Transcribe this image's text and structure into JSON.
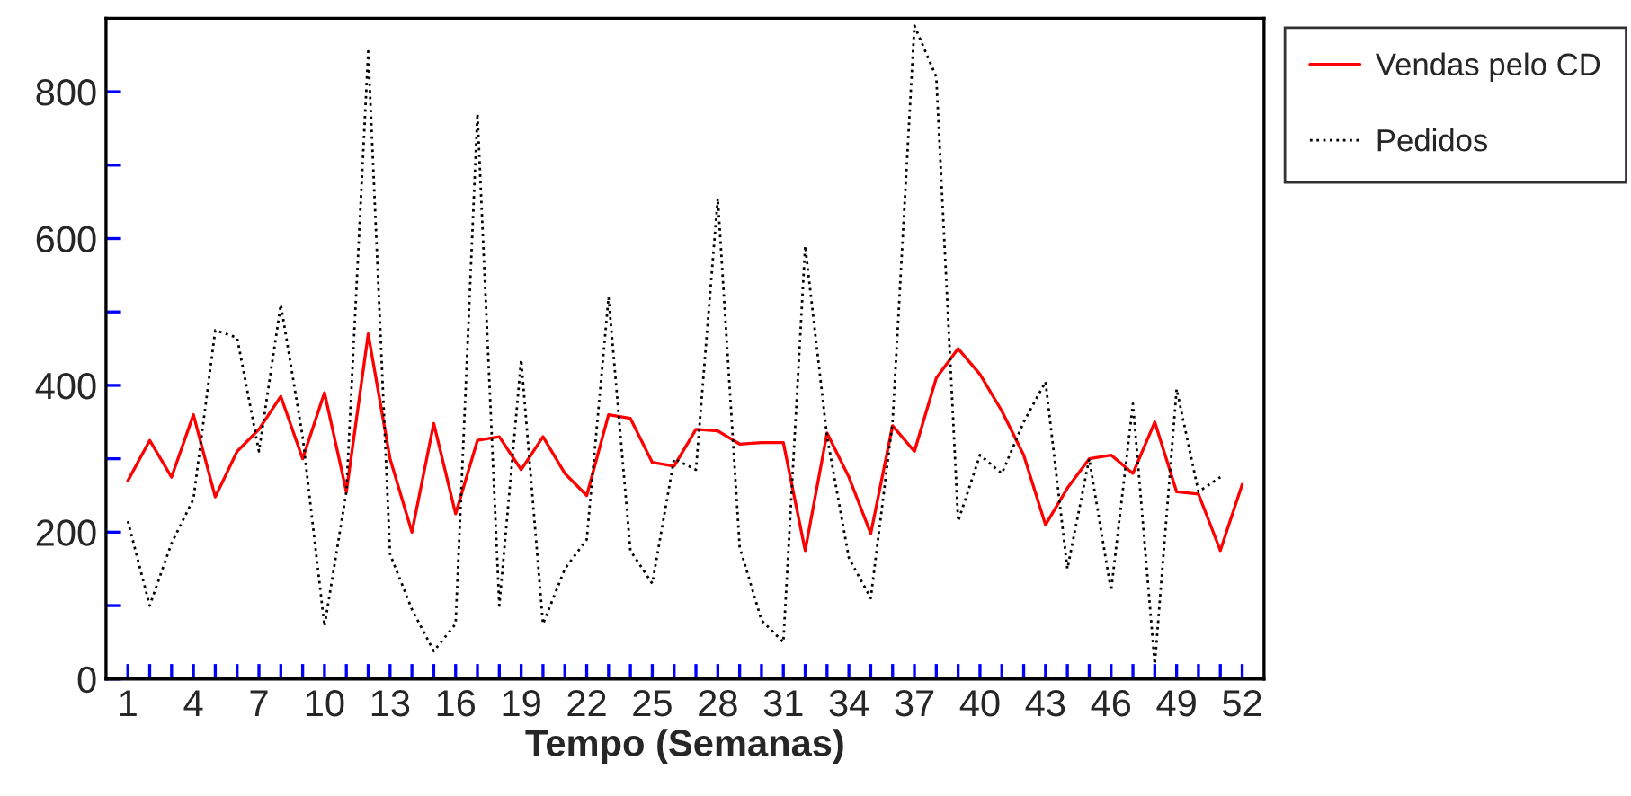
{
  "chart_data": {
    "type": "line",
    "xlabel": "Tempo (Semanas)",
    "x": [
      1,
      2,
      3,
      4,
      5,
      6,
      7,
      8,
      9,
      10,
      11,
      12,
      13,
      14,
      15,
      16,
      17,
      18,
      19,
      20,
      21,
      22,
      23,
      24,
      25,
      26,
      27,
      28,
      29,
      30,
      31,
      32,
      33,
      34,
      35,
      36,
      37,
      38,
      39,
      40,
      41,
      42,
      43,
      44,
      45,
      46,
      47,
      48,
      49,
      50,
      51,
      52
    ],
    "series": [
      {
        "name": "Vendas pelo CD",
        "color": "#ff0000",
        "line_style": "solid",
        "values": [
          270,
          325,
          275,
          360,
          248,
          310,
          340,
          385,
          300,
          390,
          255,
          470,
          300,
          200,
          348,
          225,
          325,
          330,
          285,
          330,
          280,
          250,
          360,
          355,
          295,
          290,
          340,
          338,
          320,
          322,
          322,
          175,
          335,
          275,
          198,
          345,
          310,
          410,
          450,
          415,
          365,
          305,
          210,
          260,
          300,
          305,
          280,
          350,
          255,
          252,
          175,
          265
        ]
      },
      {
        "name": "Pedidos",
        "color": "#000000",
        "line_style": "dotted",
        "values": [
          215,
          100,
          185,
          245,
          475,
          465,
          310,
          510,
          330,
          72,
          255,
          855,
          170,
          95,
          38,
          75,
          770,
          100,
          435,
          75,
          150,
          190,
          520,
          175,
          130,
          300,
          285,
          655,
          180,
          80,
          50,
          590,
          330,
          165,
          110,
          350,
          890,
          820,
          215,
          305,
          280,
          350,
          405,
          150,
          300,
          120,
          375,
          20,
          395,
          255,
          275,
          null
        ]
      }
    ],
    "xlim": [
      0,
      53
    ],
    "ylim": [
      0,
      900
    ],
    "xticks": [
      1,
      {
        "value": 2,
        "label": null
      },
      {
        "value": 3,
        "label": null
      },
      4,
      {
        "value": 5,
        "label": null
      },
      {
        "value": 6,
        "label": null
      },
      7,
      {
        "value": 8,
        "label": null
      },
      {
        "value": 9,
        "label": null
      },
      10,
      {
        "value": 11,
        "label": null
      },
      {
        "value": 12,
        "label": null
      },
      13,
      {
        "value": 14,
        "label": null
      },
      {
        "value": 15,
        "label": null
      },
      16,
      {
        "value": 17,
        "label": null
      },
      {
        "value": 18,
        "label": null
      },
      19,
      {
        "value": 20,
        "label": null
      },
      {
        "value": 21,
        "label": null
      },
      22,
      {
        "value": 23,
        "label": null
      },
      {
        "value": 24,
        "label": null
      },
      25,
      {
        "value": 26,
        "label": null
      },
      {
        "value": 27,
        "label": null
      },
      28,
      {
        "value": 29,
        "label": null
      },
      {
        "value": 30,
        "label": null
      },
      31,
      {
        "value": 32,
        "label": null
      },
      {
        "value": 33,
        "label": null
      },
      34,
      {
        "value": 35,
        "label": null
      },
      {
        "value": 36,
        "label": null
      },
      37,
      {
        "value": 38,
        "label": null
      },
      {
        "value": 39,
        "label": null
      },
      40,
      {
        "value": 41,
        "label": null
      },
      {
        "value": 42,
        "label": null
      },
      43,
      {
        "value": 44,
        "label": null
      },
      {
        "value": 45,
        "label": null
      },
      46,
      {
        "value": 47,
        "label": null
      },
      {
        "value": 48,
        "label": null
      },
      49,
      {
        "value": 50,
        "label": null
      },
      {
        "value": 51,
        "label": null
      },
      52
    ],
    "yticks": [
      0,
      {
        "value": 100,
        "label": null
      },
      200,
      {
        "value": 300,
        "label": null
      },
      400,
      {
        "value": 500,
        "label": null
      },
      600,
      {
        "value": 700,
        "label": null
      },
      800
    ],
    "grid": false,
    "legend": "right",
    "marker": "none"
  }
}
